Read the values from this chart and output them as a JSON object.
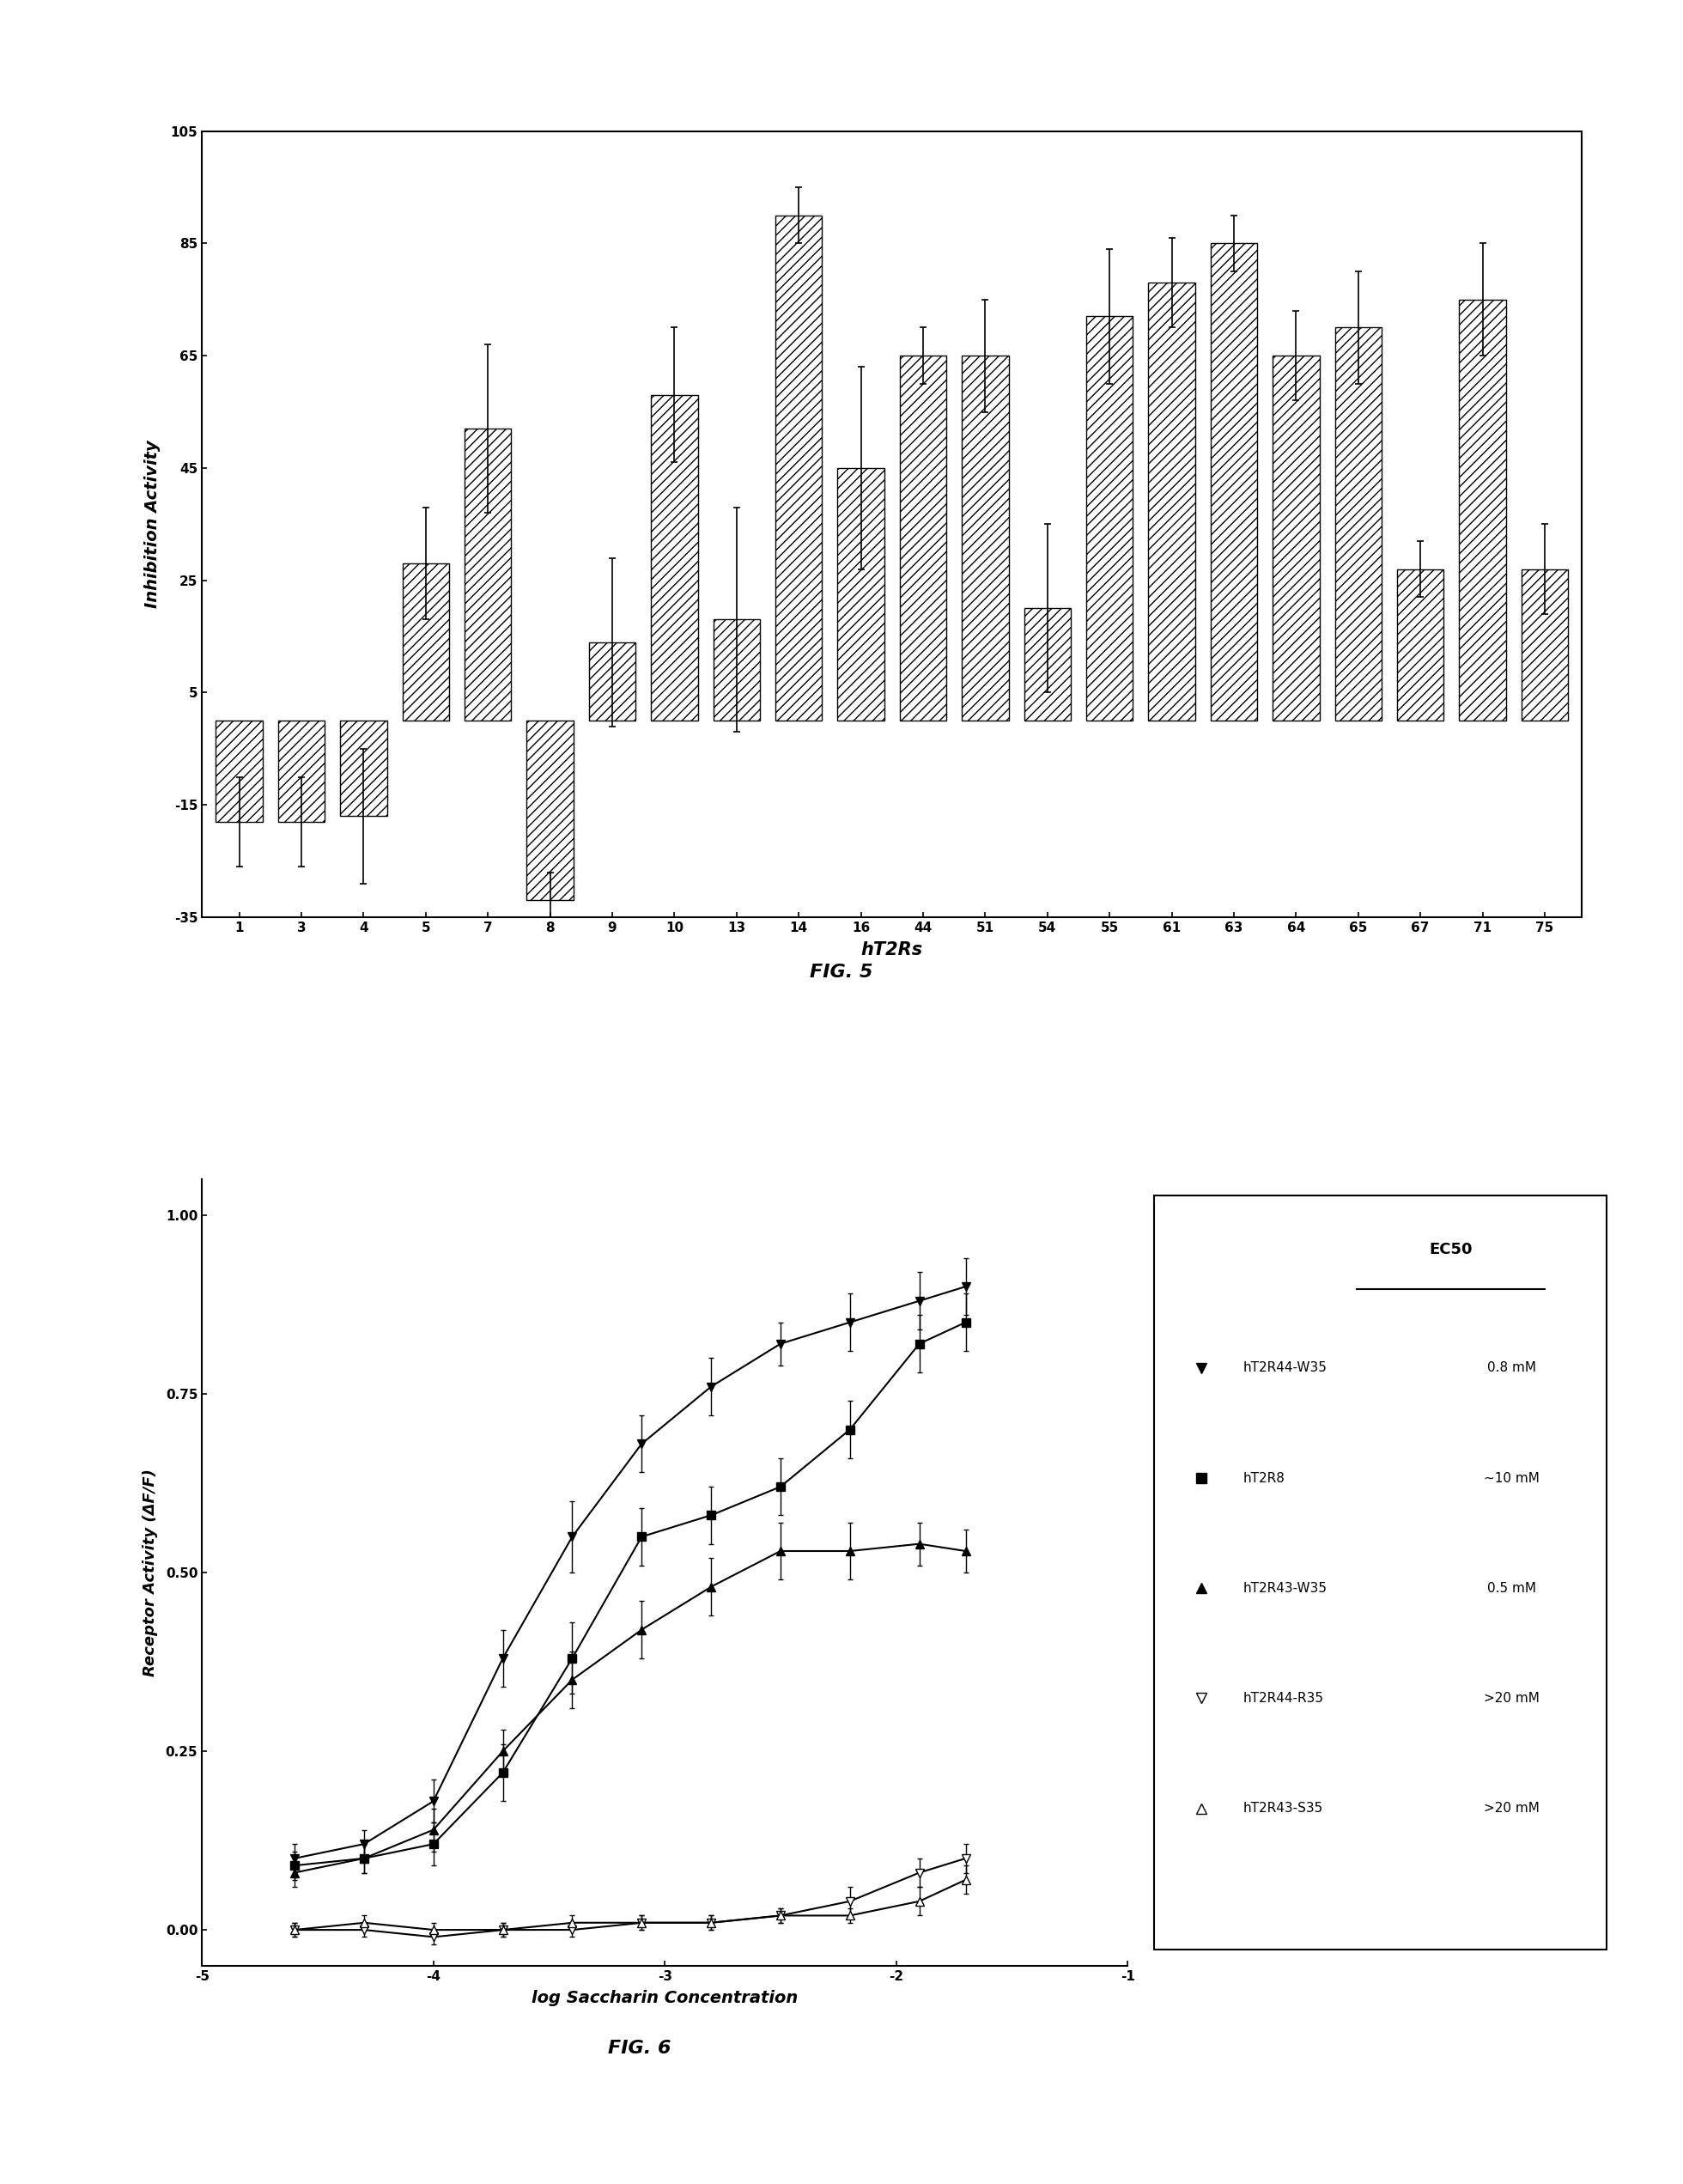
{
  "fig5": {
    "categories": [
      "1",
      "3",
      "4",
      "5",
      "7",
      "8",
      "9",
      "10",
      "13",
      "14",
      "16",
      "44",
      "51",
      "54",
      "55",
      "61",
      "63",
      "64",
      "65",
      "67",
      "71",
      "75"
    ],
    "values": [
      -18,
      -18,
      -17,
      28,
      52,
      -32,
      14,
      58,
      18,
      90,
      45,
      65,
      65,
      20,
      72,
      78,
      85,
      65,
      70,
      27,
      75,
      27
    ],
    "errors": [
      8,
      8,
      12,
      10,
      15,
      5,
      15,
      12,
      20,
      5,
      18,
      5,
      10,
      15,
      12,
      8,
      5,
      8,
      10,
      5,
      10,
      8
    ],
    "ylabel": "Inhibition Activity",
    "xlabel": "hT2Rs",
    "ylim": [
      -35,
      105
    ],
    "yticks": [
      -35,
      -15,
      5,
      25,
      45,
      65,
      85,
      105
    ],
    "fig_label": "FIG. 5"
  },
  "fig6": {
    "series": {
      "hT2R44-W35": {
        "marker": "v",
        "filled": true,
        "ec50": "0.8 mM",
        "x": [
          -4.6,
          -4.3,
          -4.0,
          -3.7,
          -3.4,
          -3.1,
          -2.8,
          -2.5,
          -2.2,
          -1.9,
          -1.7
        ],
        "y": [
          0.1,
          0.12,
          0.18,
          0.38,
          0.55,
          0.68,
          0.76,
          0.82,
          0.85,
          0.88,
          0.9
        ],
        "yerr": [
          0.02,
          0.02,
          0.03,
          0.04,
          0.05,
          0.04,
          0.04,
          0.03,
          0.04,
          0.04,
          0.04
        ]
      },
      "hT2R8": {
        "marker": "s",
        "filled": true,
        "ec50": "~10 mM",
        "x": [
          -4.6,
          -4.3,
          -4.0,
          -3.7,
          -3.4,
          -3.1,
          -2.8,
          -2.5,
          -2.2,
          -1.9,
          -1.7
        ],
        "y": [
          0.09,
          0.1,
          0.12,
          0.22,
          0.38,
          0.55,
          0.58,
          0.62,
          0.7,
          0.82,
          0.85
        ],
        "yerr": [
          0.02,
          0.02,
          0.03,
          0.04,
          0.05,
          0.04,
          0.04,
          0.04,
          0.04,
          0.04,
          0.04
        ]
      },
      "hT2R43-W35": {
        "marker": "^",
        "filled": true,
        "ec50": "0.5 mM",
        "x": [
          -4.6,
          -4.3,
          -4.0,
          -3.7,
          -3.4,
          -3.1,
          -2.8,
          -2.5,
          -2.2,
          -1.9,
          -1.7
        ],
        "y": [
          0.08,
          0.1,
          0.14,
          0.25,
          0.35,
          0.42,
          0.48,
          0.53,
          0.53,
          0.54,
          0.53
        ],
        "yerr": [
          0.02,
          0.02,
          0.03,
          0.03,
          0.04,
          0.04,
          0.04,
          0.04,
          0.04,
          0.03,
          0.03
        ]
      },
      "hT2R44-R35": {
        "marker": "v",
        "filled": false,
        "ec50": ">20 mM",
        "x": [
          -4.6,
          -4.3,
          -4.0,
          -3.7,
          -3.4,
          -3.1,
          -2.8,
          -2.5,
          -2.2,
          -1.9,
          -1.7
        ],
        "y": [
          0.0,
          0.0,
          -0.01,
          0.0,
          0.0,
          0.01,
          0.01,
          0.02,
          0.04,
          0.08,
          0.1
        ],
        "yerr": [
          0.01,
          0.01,
          0.01,
          0.01,
          0.01,
          0.01,
          0.01,
          0.01,
          0.02,
          0.02,
          0.02
        ]
      },
      "hT2R43-S35": {
        "marker": "^",
        "filled": false,
        "ec50": ">20 mM",
        "x": [
          -4.6,
          -4.3,
          -4.0,
          -3.7,
          -3.4,
          -3.1,
          -2.8,
          -2.5,
          -2.2,
          -1.9,
          -1.7
        ],
        "y": [
          0.0,
          0.01,
          0.0,
          0.0,
          0.01,
          0.01,
          0.01,
          0.02,
          0.02,
          0.04,
          0.07
        ],
        "yerr": [
          0.01,
          0.01,
          0.01,
          0.01,
          0.01,
          0.01,
          0.01,
          0.01,
          0.01,
          0.02,
          0.02
        ]
      }
    },
    "series_order": [
      "hT2R44-W35",
      "hT2R8",
      "hT2R43-W35",
      "hT2R44-R35",
      "hT2R43-S35"
    ],
    "xlabel": "log Saccharin Concentration",
    "ylabel": "Receptor Activity (ΔF/F)",
    "xlim": [
      -5,
      -1
    ],
    "ylim": [
      -0.05,
      1.05
    ],
    "yticks": [
      0.0,
      0.25,
      0.5,
      0.75,
      1.0
    ],
    "xticks": [
      -5,
      -4,
      -3,
      -2,
      -1
    ],
    "fig_label": "FIG. 6"
  },
  "background_color": "#ffffff",
  "bar_hatch": "///",
  "bar_facecolor": "white",
  "bar_edgecolor": "black"
}
